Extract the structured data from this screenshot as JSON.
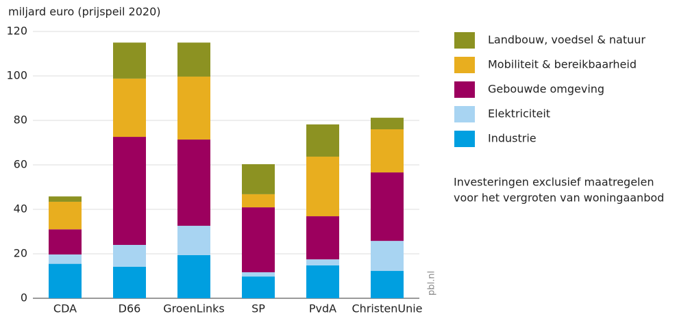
{
  "chart_data": {
    "type": "stacked_bar",
    "y_axis_label": "miljard euro (prijspeil 2020)",
    "categories": [
      "CDA",
      "D66",
      "GroenLinks",
      "SP",
      "PvdA",
      "ChristenUnie"
    ],
    "series": [
      {
        "name": "Industrie",
        "color": "#009fe0",
        "values": [
          15.5,
          14.2,
          19.4,
          9.8,
          14.8,
          12.3
        ]
      },
      {
        "name": "Elektriciteit",
        "color": "#a8d4f2",
        "values": [
          4.2,
          9.8,
          13.2,
          1.9,
          2.7,
          13.5
        ]
      },
      {
        "name": "Gebouwde omgeving",
        "color": "#9c005e",
        "values": [
          11.3,
          48.6,
          38.8,
          29.2,
          19.4,
          30.8
        ]
      },
      {
        "name": "Mobiliteit & bereikbaarheid",
        "color": "#e8ae1f",
        "values": [
          12.4,
          26.2,
          28.3,
          5.9,
          26.8,
          19.4
        ]
      },
      {
        "name": "Landbouw, voedsel & natuur",
        "color": "#8c9222",
        "values": [
          2.4,
          16.2,
          15.3,
          13.5,
          14.5,
          5.2
        ]
      }
    ],
    "ylim": [
      0,
      120
    ],
    "yticks": [
      0,
      20,
      40,
      60,
      80,
      100,
      120
    ],
    "grid": true,
    "annotation": [
      "Investeringen exclusief maatregelen",
      "voor het vergroten van woningaanbod"
    ],
    "source": "pbl.nl"
  }
}
